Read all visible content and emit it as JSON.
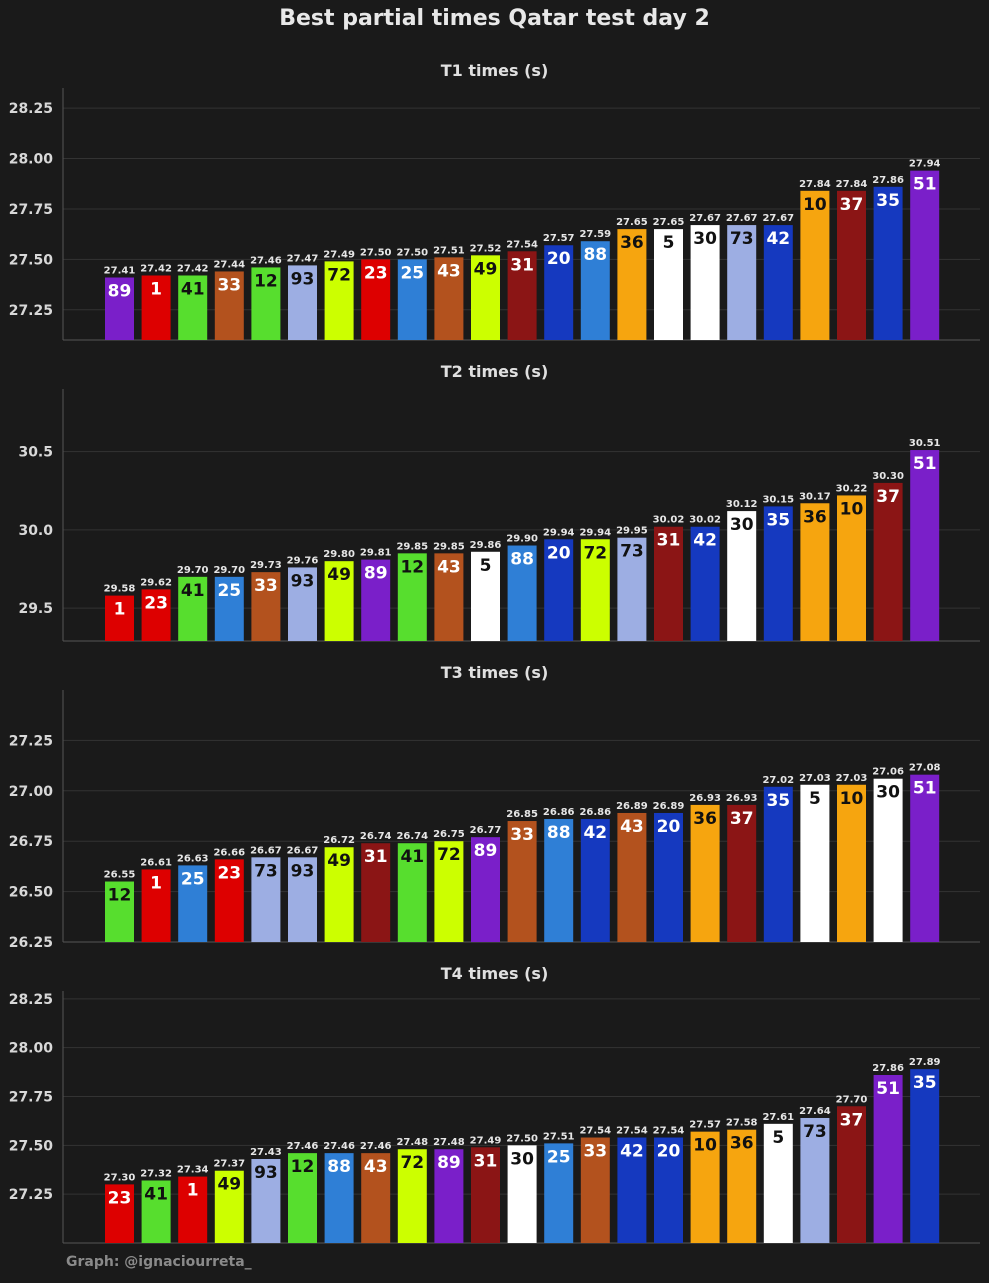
{
  "title": "Best partial times Qatar test day 2",
  "credit": "Graph: @ignaciourreta_",
  "colors": {
    "89": "#7a1fc9",
    "1": "#dd0000",
    "41": "#57de2e",
    "33": "#b3521e",
    "12": "#57de2e",
    "93": "#9daee3",
    "72": "#ccff00",
    "23": "#dd0000",
    "25": "#2f7fd6",
    "43": "#b3521e",
    "49": "#ccff00",
    "31": "#8b1515",
    "20": "#1539bf",
    "88": "#2f7fd6",
    "36": "#f6a50f",
    "5": "#ffffff",
    "30": "#ffffff",
    "73": "#9daee3",
    "42": "#1539bf",
    "10": "#f6a50f",
    "37": "#8b1515",
    "35": "#1539bf",
    "51": "#7a1fc9"
  },
  "dark_label_numbers": [
    "41",
    "12",
    "93",
    "72",
    "49",
    "36",
    "5",
    "30",
    "73",
    "10"
  ],
  "chart_data": [
    {
      "type": "bar",
      "title": "T1 times (s)",
      "categories": [
        "89",
        "1",
        "41",
        "33",
        "12",
        "93",
        "72",
        "23",
        "25",
        "43",
        "49",
        "31",
        "20",
        "88",
        "36",
        "5",
        "30",
        "73",
        "42",
        "10",
        "37",
        "35",
        "51"
      ],
      "values": [
        27.41,
        27.42,
        27.42,
        27.44,
        27.46,
        27.47,
        27.49,
        27.5,
        27.5,
        27.51,
        27.52,
        27.54,
        27.57,
        27.59,
        27.65,
        27.65,
        27.67,
        27.67,
        27.67,
        27.84,
        27.84,
        27.86,
        27.94
      ],
      "yticks": [
        "27.25",
        "27.50",
        "27.75",
        "28.00",
        "28.25"
      ],
      "ylim": [
        27.1,
        28.35
      ],
      "grid": true
    },
    {
      "type": "bar",
      "title": "T2 times (s)",
      "categories": [
        "1",
        "23",
        "41",
        "25",
        "33",
        "93",
        "49",
        "89",
        "12",
        "43",
        "5",
        "88",
        "20",
        "72",
        "73",
        "31",
        "42",
        "30",
        "35",
        "36",
        "10",
        "37",
        "51"
      ],
      "values": [
        29.58,
        29.62,
        29.7,
        29.7,
        29.73,
        29.76,
        29.8,
        29.81,
        29.85,
        29.85,
        29.86,
        29.9,
        29.94,
        29.94,
        29.95,
        30.02,
        30.02,
        30.12,
        30.15,
        30.17,
        30.22,
        30.3,
        30.51
      ],
      "yticks": [
        "29.5",
        "30.0",
        "30.5"
      ],
      "ylim": [
        29.29,
        30.9
      ],
      "grid": true
    },
    {
      "type": "bar",
      "title": "T3 times (s)",
      "categories": [
        "12",
        "1",
        "25",
        "23",
        "73",
        "93",
        "49",
        "31",
        "41",
        "72",
        "89",
        "33",
        "88",
        "42",
        "43",
        "20",
        "36",
        "37",
        "35",
        "5",
        "10",
        "30",
        "51"
      ],
      "values": [
        26.55,
        26.61,
        26.63,
        26.66,
        26.67,
        26.67,
        26.72,
        26.74,
        26.74,
        26.75,
        26.77,
        26.85,
        26.86,
        26.86,
        26.89,
        26.89,
        26.93,
        26.93,
        27.02,
        27.03,
        27.03,
        27.06,
        27.08
      ],
      "yticks": [
        "26.25",
        "26.50",
        "26.75",
        "27.00",
        "27.25"
      ],
      "ylim": [
        26.25,
        27.5
      ],
      "grid": true
    },
    {
      "type": "bar",
      "title": "T4 times (s)",
      "categories": [
        "23",
        "41",
        "1",
        "49",
        "93",
        "12",
        "88",
        "43",
        "72",
        "89",
        "31",
        "30",
        "25",
        "33",
        "42",
        "20",
        "10",
        "36",
        "5",
        "73",
        "37",
        "51",
        "35"
      ],
      "values": [
        27.3,
        27.32,
        27.34,
        27.37,
        27.43,
        27.46,
        27.46,
        27.46,
        27.48,
        27.48,
        27.49,
        27.5,
        27.51,
        27.54,
        27.54,
        27.54,
        27.57,
        27.58,
        27.61,
        27.64,
        27.7,
        27.86,
        27.89
      ],
      "yticks": [
        "27.25",
        "27.50",
        "27.75",
        "28.00",
        "28.25"
      ],
      "ylim": [
        27.0,
        28.29
      ],
      "grid": true
    }
  ]
}
